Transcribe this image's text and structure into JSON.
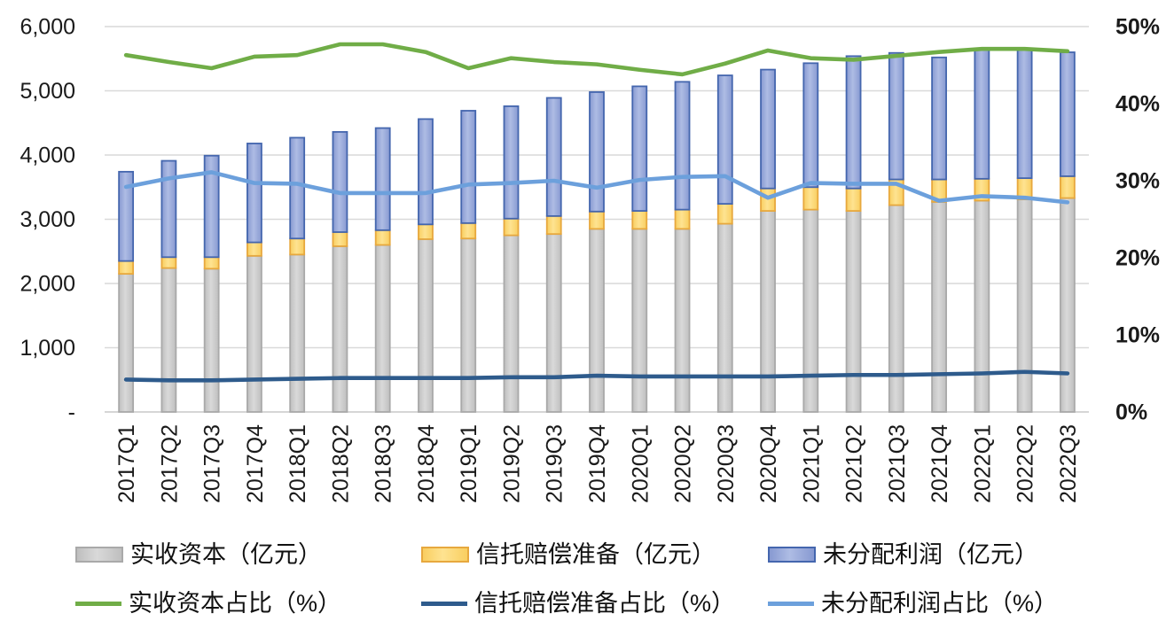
{
  "colors": {
    "bar_gray_fill_light": "#D9D9D9",
    "bar_gray_fill_dark": "#BFBFBF",
    "bar_gray_border": "#A9A9A9",
    "bar_yellow_fill_light": "#FEE391",
    "bar_yellow_fill_dark": "#F9CE60",
    "bar_yellow_border": "#E7A83E",
    "bar_blue_fill_light": "#AEBCE4",
    "bar_blue_fill_dark": "#8799D1",
    "bar_blue_border": "#4466AE",
    "line_green": "#70AD47",
    "line_dark_blue": "#2E5B8C",
    "line_light_blue": "#6CA0DC",
    "gridline": "#D9D9D9",
    "axis_line": "#C9C9C9",
    "tick_text": "#1A1A1A"
  },
  "chart_data": {
    "type": "bar",
    "subtype": "stacked-bar-with-lines",
    "grid": true,
    "legend_position": "bottom",
    "categories": [
      "2017Q1",
      "2017Q2",
      "2017Q3",
      "2017Q4",
      "2018Q1",
      "2018Q2",
      "2018Q3",
      "2018Q4",
      "2019Q1",
      "2019Q2",
      "2019Q3",
      "2019Q4",
      "2020Q1",
      "2020Q2",
      "2020Q3",
      "2020Q4",
      "2021Q1",
      "2021Q2",
      "2021Q3",
      "2021Q4",
      "2022Q1",
      "2022Q2",
      "2022Q3"
    ],
    "bar_series": [
      {
        "name": "实收资本（亿元）",
        "color_key": "gray",
        "values": [
          2150,
          2240,
          2230,
          2430,
          2450,
          2580,
          2600,
          2690,
          2700,
          2750,
          2770,
          2850,
          2850,
          2850,
          2930,
          3130,
          3150,
          3130,
          3220,
          3270,
          3290,
          3310,
          3330
        ]
      },
      {
        "name": "信托赔偿准备（亿元）",
        "color_key": "yellow",
        "values": [
          200,
          170,
          180,
          210,
          250,
          220,
          230,
          230,
          240,
          260,
          280,
          270,
          280,
          300,
          310,
          350,
          350,
          350,
          400,
          350,
          340,
          330,
          340
        ]
      },
      {
        "name": "未分配利润（亿元）",
        "color_key": "blue",
        "values": [
          1390,
          1500,
          1580,
          1540,
          1570,
          1560,
          1590,
          1640,
          1750,
          1750,
          1840,
          1860,
          1940,
          1990,
          2000,
          1850,
          1930,
          2060,
          1970,
          1900,
          2020,
          2000,
          1930
        ]
      }
    ],
    "line_series": [
      {
        "name": "实收资本占比（%）",
        "color_key": "green",
        "values": [
          46.3,
          45.4,
          44.6,
          46.1,
          46.3,
          47.7,
          47.7,
          46.7,
          44.6,
          45.9,
          45.4,
          45.1,
          44.4,
          43.8,
          45.2,
          46.9,
          45.9,
          45.7,
          46.2,
          46.7,
          47.1,
          47.1,
          46.8
        ]
      },
      {
        "name": "信托赔偿准备占比（%）",
        "color_key": "dark_blue",
        "values": [
          4.2,
          4.1,
          4.1,
          4.2,
          4.3,
          4.4,
          4.4,
          4.4,
          4.4,
          4.5,
          4.5,
          4.7,
          4.6,
          4.6,
          4.6,
          4.6,
          4.7,
          4.8,
          4.8,
          4.9,
          5.0,
          5.2,
          5.0
        ]
      },
      {
        "name": "未分配利润占比（%）",
        "color_key": "light_blue",
        "values": [
          29.2,
          30.3,
          31.1,
          29.7,
          29.6,
          28.4,
          28.4,
          28.4,
          29.5,
          29.7,
          30.0,
          29.1,
          30.1,
          30.5,
          30.6,
          27.8,
          29.7,
          29.6,
          29.6,
          27.4,
          28.0,
          27.8,
          27.2
        ]
      }
    ],
    "left_axis": {
      "min": 0,
      "max": 6000,
      "step": 1000,
      "tick_labels": [
        "6,000",
        "5,000",
        "4,000",
        "3,000",
        "2,000",
        "1,000",
        "-"
      ]
    },
    "right_axis": {
      "min": 0,
      "max": 50,
      "step": 10,
      "tick_labels": [
        "50%",
        "40%",
        "30%",
        "20%",
        "10%",
        "0%"
      ]
    }
  },
  "legend": {
    "rows": 2,
    "columns": 3
  }
}
